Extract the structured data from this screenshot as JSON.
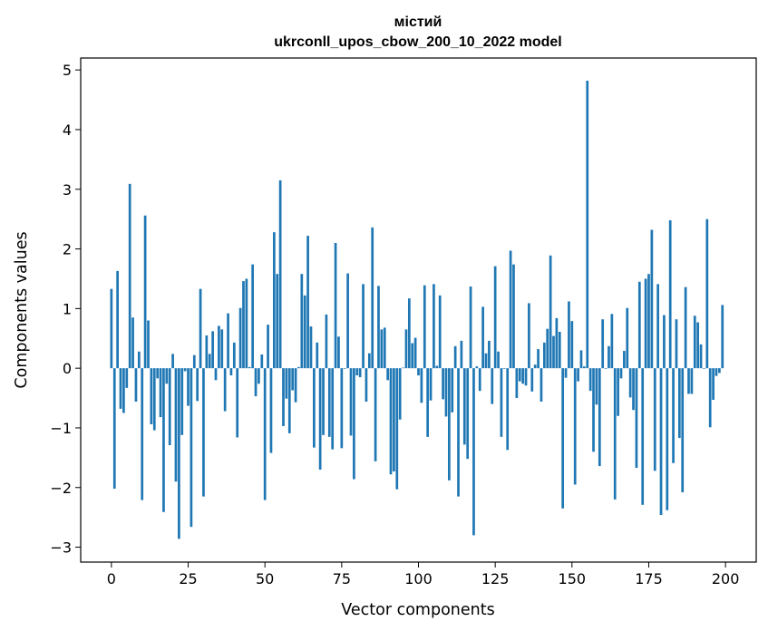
{
  "chart_data": {
    "type": "bar",
    "title": "містий",
    "subtitle": "ukrconll_upos_cbow_200_10_2022 model",
    "xlabel": "Vector components",
    "ylabel": "Components values",
    "xlim": [
      -10,
      210
    ],
    "ylim": [
      -3.25,
      5.2
    ],
    "xticks": [
      0,
      25,
      50,
      75,
      100,
      125,
      150,
      175,
      200
    ],
    "yticks": [
      -3,
      -2,
      -1,
      0,
      1,
      2,
      3,
      4,
      5
    ],
    "grid": false,
    "bar_color": "#1f77b4",
    "x": [
      0,
      1,
      2,
      3,
      4,
      5,
      6,
      7,
      8,
      9,
      10,
      11,
      12,
      13,
      14,
      15,
      16,
      17,
      18,
      19,
      20,
      21,
      22,
      23,
      24,
      25,
      26,
      27,
      28,
      29,
      30,
      31,
      32,
      33,
      34,
      35,
      36,
      37,
      38,
      39,
      40,
      41,
      42,
      43,
      44,
      45,
      46,
      47,
      48,
      49,
      50,
      51,
      52,
      53,
      54,
      55,
      56,
      57,
      58,
      59,
      60,
      61,
      62,
      63,
      64,
      65,
      66,
      67,
      68,
      69,
      70,
      71,
      72,
      73,
      74,
      75,
      76,
      77,
      78,
      79,
      80,
      81,
      82,
      83,
      84,
      85,
      86,
      87,
      88,
      89,
      90,
      91,
      92,
      93,
      94,
      95,
      96,
      97,
      98,
      99,
      100,
      101,
      102,
      103,
      104,
      105,
      106,
      107,
      108,
      109,
      110,
      111,
      112,
      113,
      114,
      115,
      116,
      117,
      118,
      119,
      120,
      121,
      122,
      123,
      124,
      125,
      126,
      127,
      128,
      129,
      130,
      131,
      132,
      133,
      134,
      135,
      136,
      137,
      138,
      139,
      140,
      141,
      142,
      143,
      144,
      145,
      146,
      147,
      148,
      149,
      150,
      151,
      152,
      153,
      154,
      155,
      156,
      157,
      158,
      159,
      160,
      161,
      162,
      163,
      164,
      165,
      166,
      167,
      168,
      169,
      170,
      171,
      172,
      173,
      174,
      175,
      176,
      177,
      178,
      179,
      180,
      181,
      182,
      183,
      184,
      185,
      186,
      187,
      188,
      189,
      190,
      191,
      192,
      193,
      194,
      195,
      196,
      197,
      198,
      199
    ],
    "values": [
      1.33,
      -2.02,
      1.63,
      -0.68,
      -0.75,
      -0.33,
      3.09,
      0.85,
      -0.56,
      0.28,
      -2.21,
      2.56,
      0.8,
      -0.94,
      -1.04,
      -0.17,
      -0.82,
      -2.41,
      -0.26,
      -1.29,
      0.24,
      -1.9,
      -2.86,
      -1.12,
      -0.05,
      -0.63,
      -2.66,
      0.22,
      -0.55,
      1.33,
      -2.15,
      0.55,
      0.24,
      0.62,
      -0.2,
      0.71,
      0.65,
      -0.72,
      0.92,
      -0.12,
      0.43,
      -1.16,
      1.01,
      1.46,
      1.5,
      0.02,
      1.74,
      -0.47,
      -0.26,
      0.23,
      -2.21,
      0.73,
      -1.42,
      2.28,
      1.58,
      3.15,
      -0.97,
      -0.51,
      -1.09,
      -0.37,
      -0.57,
      0.02,
      1.58,
      1.22,
      2.22,
      0.7,
      -1.33,
      0.43,
      -1.7,
      -1.12,
      0.9,
      -1.15,
      -1.36,
      2.1,
      0.53,
      -1.34,
      -0.01,
      1.59,
      -1.13,
      -1.86,
      -0.12,
      -0.15,
      1.41,
      -0.56,
      0.25,
      2.36,
      -1.56,
      1.38,
      0.65,
      0.68,
      -0.2,
      -1.78,
      -1.73,
      -2.03,
      -0.86,
      0.01,
      0.65,
      1.17,
      0.42,
      0.51,
      -0.12,
      -0.58,
      1.39,
      -1.15,
      -0.54,
      1.41,
      0.04,
      1.22,
      -0.52,
      -0.81,
      -1.88,
      -0.74,
      0.37,
      -2.15,
      0.46,
      -1.28,
      -1.52,
      1.37,
      -2.8,
      0.03,
      -0.38,
      1.03,
      0.25,
      0.46,
      -0.6,
      1.71,
      0.28,
      -1.15,
      -0.01,
      -1.37,
      1.97,
      1.74,
      -0.5,
      -0.22,
      -0.26,
      -0.29,
      1.09,
      -0.39,
      0.06,
      0.32,
      -0.56,
      0.43,
      0.66,
      1.89,
      0.54,
      0.84,
      0.61,
      -2.35,
      -0.16,
      1.12,
      0.79,
      -1.95,
      -0.22,
      0.3,
      0.03,
      4.82,
      -0.38,
      -1.4,
      -0.61,
      -1.64,
      0.82,
      -0.01,
      0.37,
      0.91,
      -2.2,
      -0.8,
      -0.17,
      0.29,
      1.01,
      -0.49,
      -0.7,
      -1.67,
      1.45,
      -2.29,
      1.5,
      1.58,
      2.32,
      -1.72,
      1.41,
      -2.46,
      0.89,
      -2.38,
      2.48,
      -1.59,
      0.82,
      -1.17,
      -2.08,
      1.36,
      -0.43,
      -0.43,
      0.88,
      0.77,
      0.4,
      -0.01,
      2.5,
      -0.99,
      -0.53,
      -0.13,
      -0.08,
      1.06
    ]
  }
}
